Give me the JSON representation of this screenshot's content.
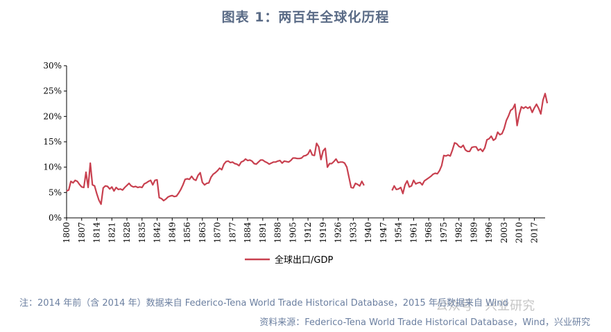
{
  "title": "图表 1：两百年全球化历程",
  "note": "注：2014 年前（含 2014 年）数据来自 Federico-Tena World Trade Historical Database，2015 年后数据来自 Wind",
  "source": "资料来源：Federico-Tena World Trade Historical Database，Wind，兴业研究",
  "watermark": "公众号 · 兴业研究",
  "colors": {
    "series": "#c8404f",
    "title": "#5a6b86",
    "note": "#6b7fa0"
  },
  "chart_data": {
    "type": "line",
    "ylim": [
      0,
      30
    ],
    "yticks": [
      "0%",
      "5%",
      "10%",
      "15%",
      "20%",
      "25%",
      "30%"
    ],
    "xlim": [
      1800,
      2022
    ],
    "xticks": [
      "1800",
      "1807",
      "1814",
      "1821",
      "1828",
      "1835",
      "1842",
      "1849",
      "1856",
      "1863",
      "1870",
      "1877",
      "1884",
      "1891",
      "1898",
      "1905",
      "1912",
      "1919",
      "1926",
      "1933",
      "1940",
      "1947",
      "1954",
      "1961",
      "1968",
      "1975",
      "1982",
      "1989",
      "1996",
      "2003",
      "2010",
      "2017"
    ],
    "legend_position": "bottom",
    "series": [
      {
        "name": "全球出口/GDP",
        "unit": "%",
        "points": [
          [
            1800,
            5.3
          ],
          [
            1801,
            5.5
          ],
          [
            1802,
            7.2
          ],
          [
            1803,
            6.9
          ],
          [
            1804,
            7.4
          ],
          [
            1805,
            7.2
          ],
          [
            1806,
            6.6
          ],
          [
            1807,
            6.1
          ],
          [
            1808,
            6.0
          ],
          [
            1809,
            9.0
          ],
          [
            1810,
            6.0
          ],
          [
            1811,
            10.8
          ],
          [
            1812,
            6.5
          ],
          [
            1813,
            6.3
          ],
          [
            1814,
            4.8
          ],
          [
            1815,
            3.5
          ],
          [
            1816,
            2.7
          ],
          [
            1817,
            5.9
          ],
          [
            1818,
            6.3
          ],
          [
            1819,
            6.2
          ],
          [
            1820,
            5.7
          ],
          [
            1821,
            6.1
          ],
          [
            1822,
            5.3
          ],
          [
            1823,
            6.0
          ],
          [
            1824,
            5.6
          ],
          [
            1825,
            5.7
          ],
          [
            1826,
            5.5
          ],
          [
            1827,
            6.0
          ],
          [
            1828,
            6.4
          ],
          [
            1829,
            6.8
          ],
          [
            1830,
            6.3
          ],
          [
            1831,
            6.1
          ],
          [
            1832,
            6.2
          ],
          [
            1833,
            6.0
          ],
          [
            1834,
            6.1
          ],
          [
            1835,
            6.0
          ],
          [
            1836,
            6.7
          ],
          [
            1837,
            6.9
          ],
          [
            1838,
            7.2
          ],
          [
            1839,
            7.4
          ],
          [
            1840,
            6.5
          ],
          [
            1841,
            7.4
          ],
          [
            1842,
            7.5
          ],
          [
            1843,
            4.0
          ],
          [
            1844,
            3.8
          ],
          [
            1845,
            3.4
          ],
          [
            1846,
            3.7
          ],
          [
            1847,
            4.1
          ],
          [
            1848,
            4.3
          ],
          [
            1849,
            4.4
          ],
          [
            1850,
            4.2
          ],
          [
            1851,
            4.3
          ],
          [
            1852,
            4.9
          ],
          [
            1853,
            5.6
          ],
          [
            1854,
            6.5
          ],
          [
            1855,
            7.6
          ],
          [
            1856,
            7.7
          ],
          [
            1857,
            7.6
          ],
          [
            1858,
            8.2
          ],
          [
            1859,
            7.6
          ],
          [
            1860,
            7.4
          ],
          [
            1861,
            8.4
          ],
          [
            1862,
            8.9
          ],
          [
            1863,
            7.0
          ],
          [
            1864,
            6.5
          ],
          [
            1865,
            6.8
          ],
          [
            1866,
            6.9
          ],
          [
            1867,
            8.0
          ],
          [
            1868,
            8.6
          ],
          [
            1869,
            8.9
          ],
          [
            1870,
            9.3
          ],
          [
            1871,
            9.8
          ],
          [
            1872,
            9.5
          ],
          [
            1873,
            10.6
          ],
          [
            1874,
            11.1
          ],
          [
            1875,
            11.2
          ],
          [
            1876,
            10.9
          ],
          [
            1877,
            11.0
          ],
          [
            1878,
            10.7
          ],
          [
            1879,
            10.6
          ],
          [
            1880,
            10.3
          ],
          [
            1881,
            11.0
          ],
          [
            1882,
            11.2
          ],
          [
            1883,
            11.6
          ],
          [
            1884,
            11.3
          ],
          [
            1885,
            11.4
          ],
          [
            1886,
            11.2
          ],
          [
            1887,
            10.7
          ],
          [
            1888,
            10.6
          ],
          [
            1889,
            11.0
          ],
          [
            1890,
            11.4
          ],
          [
            1891,
            11.4
          ],
          [
            1892,
            11.1
          ],
          [
            1893,
            10.9
          ],
          [
            1894,
            10.6
          ],
          [
            1895,
            10.8
          ],
          [
            1896,
            11.0
          ],
          [
            1897,
            11.0
          ],
          [
            1898,
            11.2
          ],
          [
            1899,
            11.3
          ],
          [
            1900,
            10.8
          ],
          [
            1901,
            11.2
          ],
          [
            1902,
            11.1
          ],
          [
            1903,
            11.0
          ],
          [
            1904,
            11.3
          ],
          [
            1905,
            11.8
          ],
          [
            1906,
            11.8
          ],
          [
            1907,
            11.7
          ],
          [
            1908,
            11.7
          ],
          [
            1909,
            11.8
          ],
          [
            1910,
            12.2
          ],
          [
            1911,
            12.3
          ],
          [
            1912,
            12.6
          ],
          [
            1913,
            13.4
          ],
          [
            1914,
            12.4
          ],
          [
            1915,
            12.3
          ],
          [
            1916,
            14.7
          ],
          [
            1917,
            14.0
          ],
          [
            1918,
            11.5
          ],
          [
            1919,
            13.2
          ],
          [
            1920,
            13.7
          ],
          [
            1921,
            10.0
          ],
          [
            1922,
            10.7
          ],
          [
            1923,
            10.7
          ],
          [
            1924,
            11.1
          ],
          [
            1925,
            11.6
          ],
          [
            1926,
            10.9
          ],
          [
            1927,
            11.0
          ],
          [
            1928,
            11.0
          ],
          [
            1929,
            10.8
          ],
          [
            1930,
            10.0
          ],
          [
            1931,
            8.0
          ],
          [
            1932,
            6.0
          ],
          [
            1933,
            5.9
          ],
          [
            1934,
            6.8
          ],
          [
            1935,
            6.6
          ],
          [
            1936,
            6.3
          ],
          [
            1937,
            7.2
          ],
          [
            1938,
            6.4
          ],
          [
            1951,
            5.4
          ],
          [
            1952,
            6.3
          ],
          [
            1953,
            5.6
          ],
          [
            1954,
            5.7
          ],
          [
            1955,
            6.0
          ],
          [
            1956,
            4.8
          ],
          [
            1957,
            6.5
          ],
          [
            1958,
            7.3
          ],
          [
            1959,
            6.1
          ],
          [
            1960,
            6.3
          ],
          [
            1961,
            7.4
          ],
          [
            1962,
            6.7
          ],
          [
            1963,
            6.9
          ],
          [
            1964,
            7.0
          ],
          [
            1965,
            6.5
          ],
          [
            1966,
            7.3
          ],
          [
            1967,
            7.6
          ],
          [
            1968,
            7.9
          ],
          [
            1969,
            8.2
          ],
          [
            1970,
            8.6
          ],
          [
            1971,
            8.8
          ],
          [
            1972,
            8.7
          ],
          [
            1973,
            9.3
          ],
          [
            1974,
            10.3
          ],
          [
            1975,
            12.3
          ],
          [
            1976,
            12.2
          ],
          [
            1977,
            12.4
          ],
          [
            1978,
            12.2
          ],
          [
            1979,
            13.4
          ],
          [
            1980,
            14.8
          ],
          [
            1981,
            14.6
          ],
          [
            1982,
            14.1
          ],
          [
            1983,
            13.9
          ],
          [
            1984,
            14.3
          ],
          [
            1985,
            13.4
          ],
          [
            1986,
            13.1
          ],
          [
            1987,
            13.1
          ],
          [
            1988,
            13.9
          ],
          [
            1989,
            14.0
          ],
          [
            1990,
            14.0
          ],
          [
            1991,
            13.3
          ],
          [
            1992,
            13.6
          ],
          [
            1993,
            13.1
          ],
          [
            1994,
            13.8
          ],
          [
            1995,
            15.4
          ],
          [
            1996,
            15.6
          ],
          [
            1997,
            16.1
          ],
          [
            1998,
            15.3
          ],
          [
            1999,
            15.6
          ],
          [
            2000,
            16.9
          ],
          [
            2001,
            16.4
          ],
          [
            2002,
            16.6
          ],
          [
            2003,
            17.6
          ],
          [
            2004,
            19.2
          ],
          [
            2005,
            20.1
          ],
          [
            2006,
            21.2
          ],
          [
            2007,
            21.5
          ],
          [
            2008,
            22.4
          ],
          [
            2009,
            18.2
          ],
          [
            2010,
            20.4
          ],
          [
            2011,
            21.9
          ],
          [
            2012,
            21.6
          ],
          [
            2013,
            21.9
          ],
          [
            2014,
            21.6
          ],
          [
            2015,
            21.9
          ],
          [
            2016,
            20.8
          ],
          [
            2017,
            21.7
          ],
          [
            2018,
            22.4
          ],
          [
            2019,
            21.6
          ],
          [
            2020,
            20.5
          ],
          [
            2021,
            23.2
          ],
          [
            2022,
            24.5
          ],
          [
            2023,
            22.6
          ]
        ]
      }
    ]
  }
}
